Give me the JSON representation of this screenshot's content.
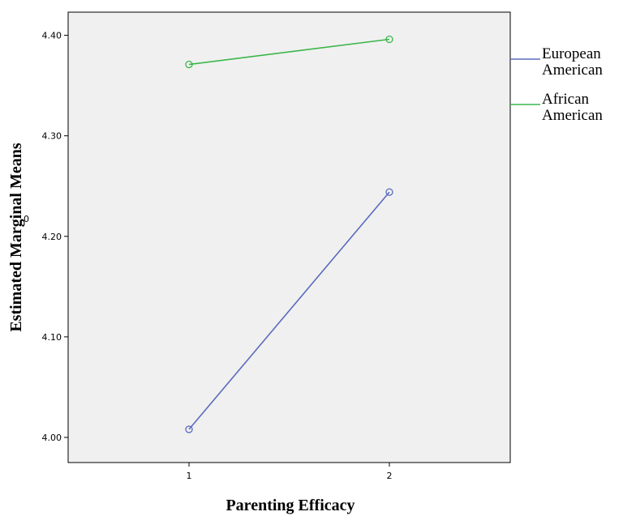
{
  "chart_data": {
    "type": "line",
    "title": "",
    "xlabel": "Parenting Efficacy",
    "ylabel": "Estimated Marginal Means",
    "categories": [
      "1",
      "2"
    ],
    "yticks": [
      "4.00",
      "4.10",
      "4.20",
      "4.30",
      "4.40"
    ],
    "ylim": [
      3.975,
      4.423
    ],
    "grid": false,
    "legend_position": "right",
    "stray_mark": "0",
    "series": [
      {
        "name": "European American",
        "legend_lines": [
          "European",
          "American"
        ],
        "color": "#5b6bbf",
        "values": [
          4.008,
          4.244
        ]
      },
      {
        "name": "African American",
        "legend_lines": [
          "African",
          "American"
        ],
        "color": "#3cb64a",
        "values": [
          4.371,
          4.396
        ]
      }
    ]
  }
}
